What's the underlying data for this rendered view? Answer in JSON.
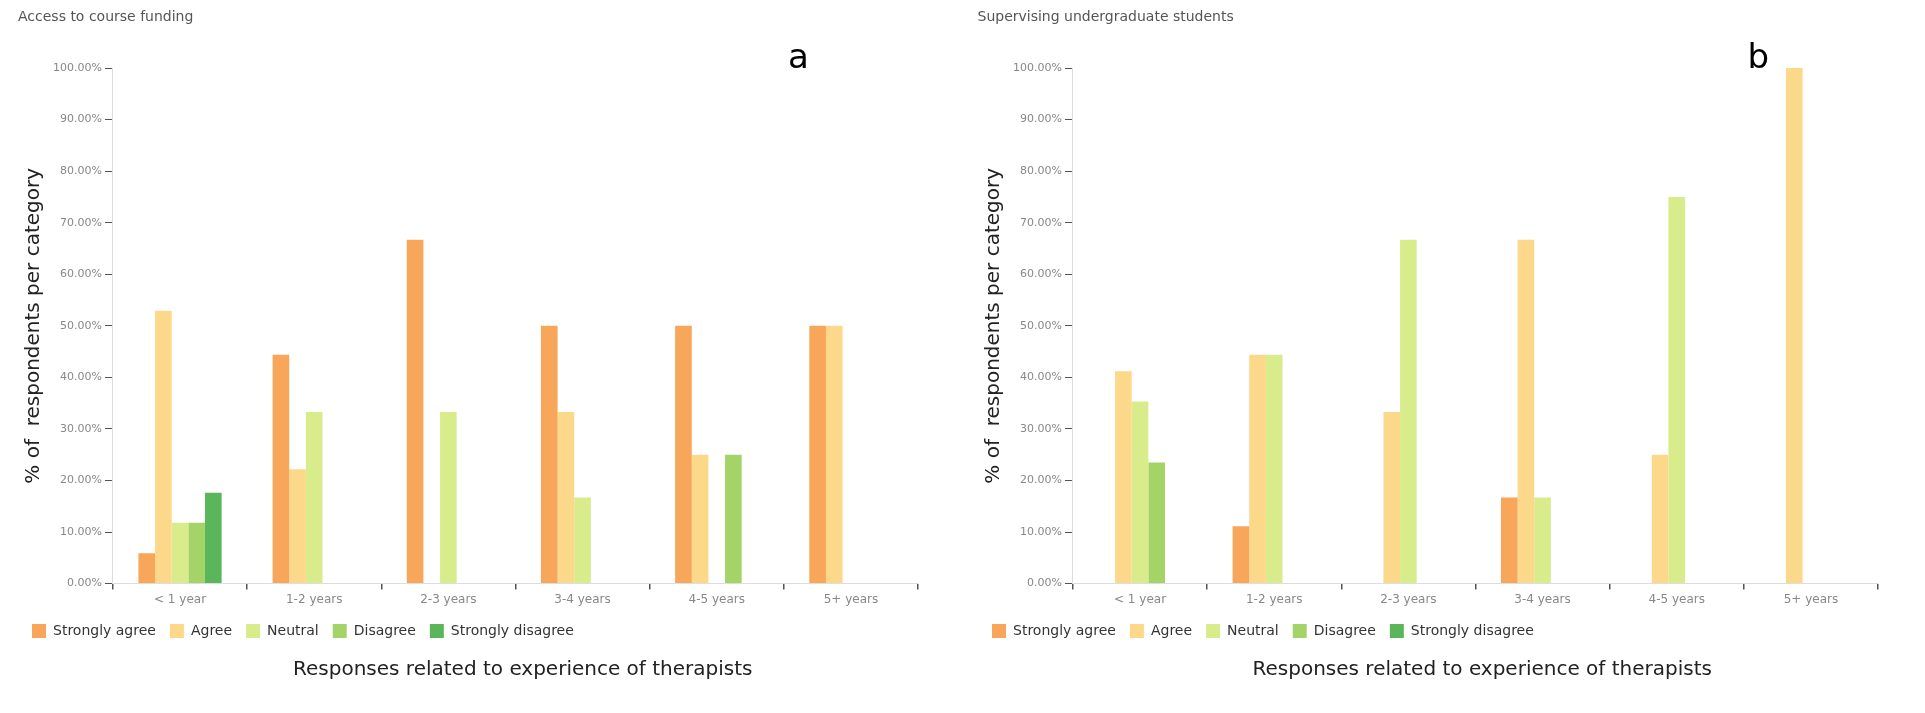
{
  "chart_data": [
    {
      "type": "bar",
      "title": "Access to course funding",
      "annotations": [
        "a"
      ],
      "ylabel": "% of  respondents per category",
      "xlabel": "Responses related to experience of therapists",
      "categories": [
        "< 1 year",
        "1-2 years",
        "2-3 years",
        "3-4 years",
        "4-5 years",
        "5+ years"
      ],
      "ylim": [
        0,
        100
      ],
      "yticks": [
        {
          "value": 0,
          "label": "0.00%"
        },
        {
          "value": 10,
          "label": "10.00%"
        },
        {
          "value": 20,
          "label": "20.00%"
        },
        {
          "value": 30,
          "label": "30.00%"
        },
        {
          "value": 40,
          "label": "40.00%"
        },
        {
          "value": 50,
          "label": "50.00%"
        },
        {
          "value": 60,
          "label": "60.00%"
        },
        {
          "value": 70,
          "label": "70.00%"
        },
        {
          "value": 80,
          "label": "80.00%"
        },
        {
          "value": 90,
          "label": "90.00%"
        },
        {
          "value": 100,
          "label": "100.00%"
        }
      ],
      "legend": "bottom",
      "series": [
        {
          "name": "Strongly agree",
          "color": "#f7a65a",
          "values": [
            5.9,
            44.4,
            66.7,
            50,
            50,
            50
          ]
        },
        {
          "name": "Agree",
          "color": "#fcd88a",
          "values": [
            52.9,
            22.2,
            null,
            33.3,
            25,
            50
          ]
        },
        {
          "name": "Neutral",
          "color": "#d9ec8c",
          "values": [
            11.8,
            33.3,
            33.3,
            16.7,
            null,
            null
          ]
        },
        {
          "name": "Disagree",
          "color": "#a4d468",
          "values": [
            11.8,
            null,
            null,
            null,
            25,
            null
          ]
        },
        {
          "name": "Strongly disagree",
          "color": "#5bb55a",
          "values": [
            17.6,
            null,
            null,
            null,
            null,
            null
          ]
        }
      ]
    },
    {
      "type": "bar",
      "title": "Supervising undergraduate students",
      "annotations": [
        "b"
      ],
      "ylabel": "% of  respondents per category",
      "xlabel": "Responses related to experience of therapists",
      "categories": [
        "< 1 year",
        "1-2 years",
        "2-3 years",
        "3-4 years",
        "4-5 years",
        "5+ years"
      ],
      "ylim": [
        0,
        100
      ],
      "yticks": [
        {
          "value": 0,
          "label": "0.00%"
        },
        {
          "value": 10,
          "label": "10.00%"
        },
        {
          "value": 20,
          "label": "20.00%"
        },
        {
          "value": 30,
          "label": "30.00%"
        },
        {
          "value": 40,
          "label": "40.00%"
        },
        {
          "value": 50,
          "label": "50.00%"
        },
        {
          "value": 60,
          "label": "60.00%"
        },
        {
          "value": 70,
          "label": "70.00%"
        },
        {
          "value": 80,
          "label": "80.00%"
        },
        {
          "value": 90,
          "label": "90.00%"
        },
        {
          "value": 100,
          "label": "100.00%"
        }
      ],
      "legend": "bottom",
      "series": [
        {
          "name": "Strongly agree",
          "color": "#f7a65a",
          "values": [
            null,
            11.1,
            null,
            16.7,
            null,
            null
          ]
        },
        {
          "name": "Agree",
          "color": "#fcd88a",
          "values": [
            41.2,
            44.4,
            33.3,
            66.7,
            25,
            100
          ]
        },
        {
          "name": "Neutral",
          "color": "#d9ec8c",
          "values": [
            35.3,
            44.4,
            66.7,
            16.7,
            75,
            null
          ]
        },
        {
          "name": "Disagree",
          "color": "#a4d468",
          "values": [
            23.5,
            null,
            null,
            null,
            null,
            null
          ]
        },
        {
          "name": "Strongly disagree",
          "color": "#5bb55a",
          "values": [
            null,
            null,
            null,
            null,
            null,
            null
          ]
        }
      ]
    }
  ]
}
